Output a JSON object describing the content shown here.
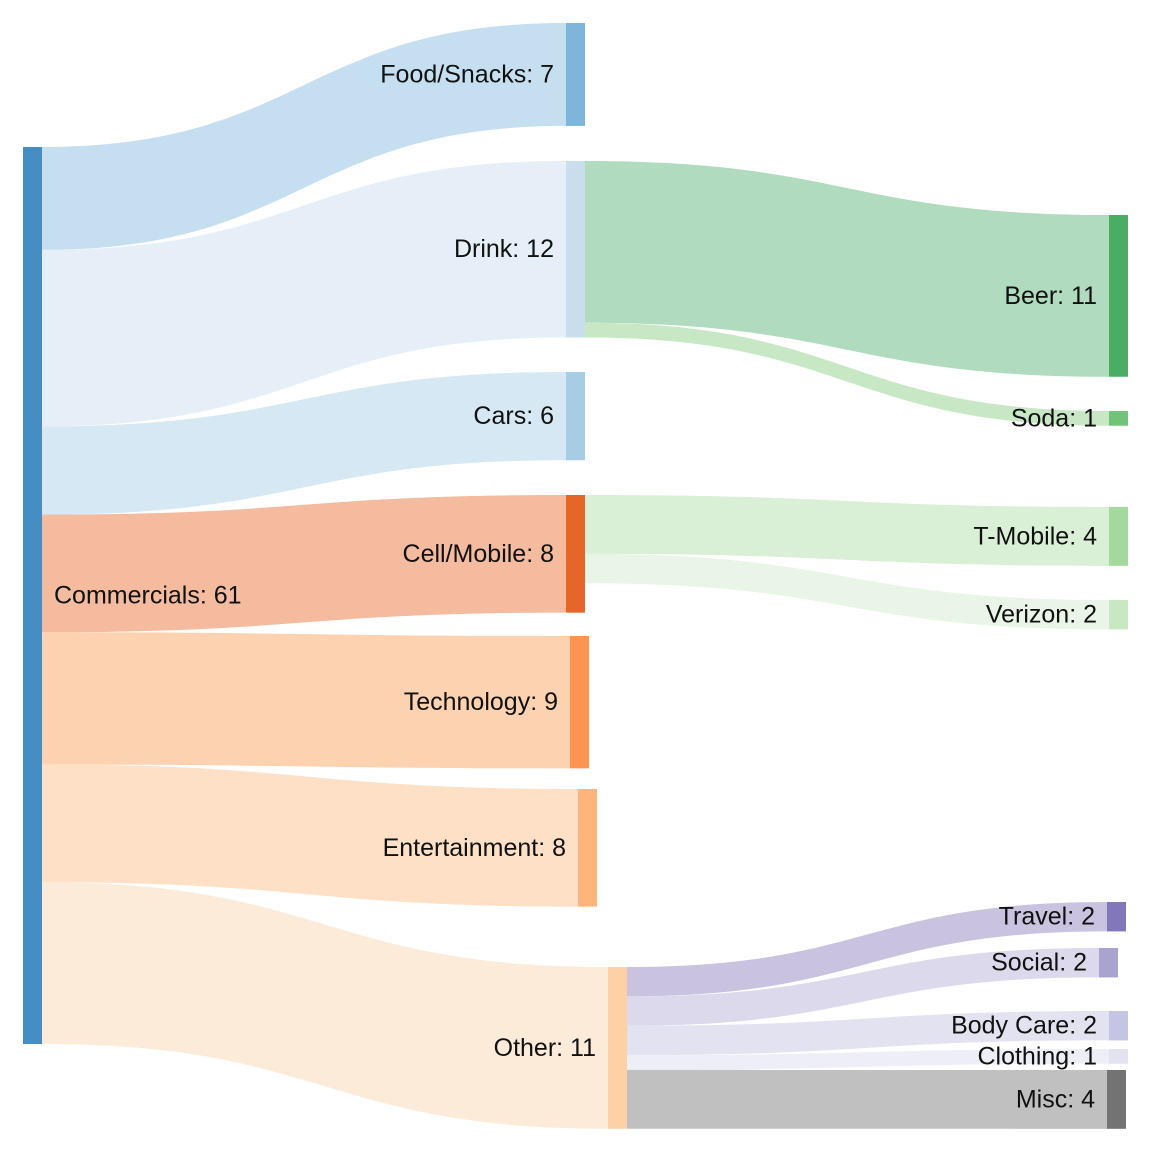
{
  "chart_data": {
    "type": "sankey",
    "nodes": [
      {
        "id": "Commercials",
        "label": "Commercials: 61",
        "value": 61,
        "color": "#458dc3"
      },
      {
        "id": "Food/Snacks",
        "label": "Food/Snacks: 7",
        "value": 7,
        "color": "#7db6da"
      },
      {
        "id": "Drink",
        "label": "Drink: 12",
        "value": 12,
        "color": "#c9dded"
      },
      {
        "id": "Cars",
        "label": "Cars: 6",
        "value": 6,
        "color": "#a6cde3"
      },
      {
        "id": "Cell/Mobile",
        "label": "Cell/Mobile: 8",
        "value": 8,
        "color": "#e6662a"
      },
      {
        "id": "Technology",
        "label": "Technology: 9",
        "value": 9,
        "color": "#fd9550"
      },
      {
        "id": "Entertainment",
        "label": "Entertainment: 8",
        "value": 8,
        "color": "#fdb57b"
      },
      {
        "id": "Other",
        "label": "Other: 11",
        "value": 11,
        "color": "#fdd0a5"
      },
      {
        "id": "Beer",
        "label": "Beer: 11",
        "value": 11,
        "color": "#4aad63"
      },
      {
        "id": "Soda",
        "label": "Soda: 1",
        "value": 1,
        "color": "#71c37a"
      },
      {
        "id": "T-Mobile",
        "label": "T-Mobile: 4",
        "value": 4,
        "color": "#a3d99c"
      },
      {
        "id": "Verizon",
        "label": "Verizon: 2",
        "value": 2,
        "color": "#c8e8c2"
      },
      {
        "id": "Travel",
        "label": "Travel: 2",
        "value": 2,
        "color": "#8278b9"
      },
      {
        "id": "Social",
        "label": "Social: 2",
        "value": 2,
        "color": "#a8a3cf"
      },
      {
        "id": "Body Care",
        "label": "Body Care: 2",
        "value": 2,
        "color": "#c5c4e2"
      },
      {
        "id": "Clothing",
        "label": "Clothing: 1",
        "value": 1,
        "color": "#e3e2f0"
      },
      {
        "id": "Misc",
        "label": "Misc: 4",
        "value": 4,
        "color": "#737373"
      }
    ],
    "links": [
      {
        "source": "Commercials",
        "target": "Food/Snacks",
        "value": 7,
        "color": "#c6dff0"
      },
      {
        "source": "Commercials",
        "target": "Drink",
        "value": 12,
        "color": "#e6eff8"
      },
      {
        "source": "Commercials",
        "target": "Cars",
        "value": 6,
        "color": "#d6e8f3"
      },
      {
        "source": "Commercials",
        "target": "Cell/Mobile",
        "value": 8,
        "color": "#f4bb9e"
      },
      {
        "source": "Commercials",
        "target": "Technology",
        "value": 9,
        "color": "#fdd2b1"
      },
      {
        "source": "Commercials",
        "target": "Entertainment",
        "value": 8,
        "color": "#fde0c6"
      },
      {
        "source": "Commercials",
        "target": "Other",
        "value": 11,
        "color": "#fdebda"
      },
      {
        "source": "Drink",
        "target": "Beer",
        "value": 11,
        "color": "#b0dbbe"
      },
      {
        "source": "Drink",
        "target": "Soda",
        "value": 1,
        "color": "#c7e7c5"
      },
      {
        "source": "Cell/Mobile",
        "target": "T-Mobile",
        "value": 4,
        "color": "#d9f0d6"
      },
      {
        "source": "Cell/Mobile",
        "target": "Verizon",
        "value": 2,
        "color": "#e9f5e6"
      },
      {
        "source": "Other",
        "target": "Travel",
        "value": 2,
        "color": "#c9c3e0"
      },
      {
        "source": "Other",
        "target": "Social",
        "value": 2,
        "color": "#dbd9eb"
      },
      {
        "source": "Other",
        "target": "Body Care",
        "value": 2,
        "color": "#e3e2f0"
      },
      {
        "source": "Other",
        "target": "Clothing",
        "value": 1,
        "color": "#eeeef6"
      },
      {
        "source": "Other",
        "target": "Misc",
        "value": 4,
        "color": "#c0c0c0"
      }
    ]
  }
}
